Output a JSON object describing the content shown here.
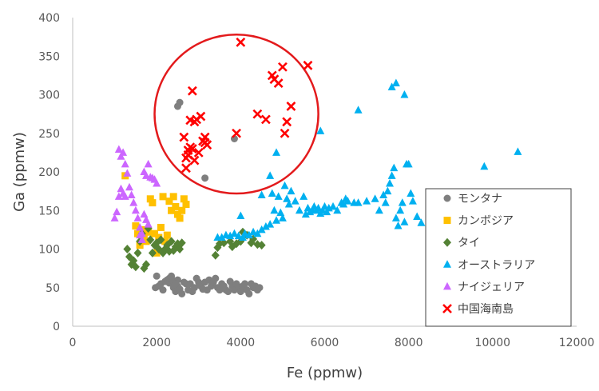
{
  "chart_data": {
    "type": "scatter",
    "title": "",
    "xlabel": "Fe (ppmw)",
    "ylabel": "Ga (ppmw)",
    "xlim": [
      0,
      12000
    ],
    "ylim": [
      0,
      400
    ],
    "xticks": [
      "0",
      "2000",
      "4000",
      "6000",
      "8000",
      "10000",
      "12000"
    ],
    "yticks": [
      "0",
      "50",
      "100",
      "150",
      "200",
      "250",
      "300",
      "350",
      "400"
    ],
    "grid": false,
    "legend_position": "bottom-right",
    "annotation": {
      "type": "ellipse",
      "color": "#e31a1c",
      "description": "red outline around the 中国海南島 cluster",
      "center": [
        3900,
        275
      ],
      "radius": [
        1950,
        103
      ]
    },
    "series": [
      {
        "name": "モンタナ",
        "marker": "circle",
        "color": "#7f7f7f",
        "points": [
          [
            1970,
            50
          ],
          [
            2000,
            65
          ],
          [
            2050,
            52
          ],
          [
            2100,
            55
          ],
          [
            2150,
            47
          ],
          [
            2200,
            58
          ],
          [
            2250,
            60
          ],
          [
            2300,
            56
          ],
          [
            2350,
            62
          ],
          [
            2400,
            50
          ],
          [
            2450,
            45
          ],
          [
            2500,
            52
          ],
          [
            2550,
            48
          ],
          [
            2600,
            42
          ],
          [
            2650,
            57
          ],
          [
            2700,
            55
          ],
          [
            2750,
            47
          ],
          [
            2800,
            55
          ],
          [
            2850,
            45
          ],
          [
            2900,
            50
          ],
          [
            2950,
            62
          ],
          [
            3000,
            57
          ],
          [
            3050,
            52
          ],
          [
            3100,
            48
          ],
          [
            3150,
            57
          ],
          [
            3200,
            47
          ],
          [
            3250,
            60
          ],
          [
            3300,
            52
          ],
          [
            3350,
            57
          ],
          [
            3400,
            62
          ],
          [
            3450,
            50
          ],
          [
            3500,
            47
          ],
          [
            3550,
            55
          ],
          [
            3600,
            52
          ],
          [
            3650,
            47
          ],
          [
            3700,
            45
          ],
          [
            3750,
            58
          ],
          [
            3800,
            52
          ],
          [
            3850,
            47
          ],
          [
            3900,
            55
          ],
          [
            3950,
            50
          ],
          [
            4000,
            45
          ],
          [
            4050,
            52
          ],
          [
            4100,
            55
          ],
          [
            4150,
            47
          ],
          [
            4200,
            42
          ],
          [
            4250,
            55
          ],
          [
            4300,
            50
          ],
          [
            4350,
            52
          ],
          [
            4400,
            47
          ],
          [
            4450,
            50
          ],
          [
            2300,
            62
          ],
          [
            2350,
            65
          ],
          [
            2400,
            58
          ],
          [
            2500,
            60
          ],
          [
            2450,
            55
          ],
          [
            2500,
            285
          ],
          [
            2550,
            290
          ],
          [
            3150,
            192
          ],
          [
            3850,
            243
          ]
        ]
      },
      {
        "name": "カンボジア",
        "marker": "square",
        "color": "#ffc000",
        "points": [
          [
            1250,
            195
          ],
          [
            1500,
            130
          ],
          [
            1550,
            120
          ],
          [
            1600,
            105
          ],
          [
            1650,
            125
          ],
          [
            1700,
            115
          ],
          [
            1750,
            110
          ],
          [
            1800,
            122
          ],
          [
            1850,
            165
          ],
          [
            1900,
            160
          ],
          [
            1950,
            120
          ],
          [
            2000,
            95
          ],
          [
            2050,
            115
          ],
          [
            2100,
            128
          ],
          [
            2150,
            168
          ],
          [
            2200,
            110
          ],
          [
            2250,
            118
          ],
          [
            2300,
            162
          ],
          [
            2350,
            150
          ],
          [
            2400,
            168
          ],
          [
            2450,
            155
          ],
          [
            2500,
            145
          ],
          [
            2550,
            140
          ],
          [
            2600,
            150
          ],
          [
            2650,
            165
          ],
          [
            2700,
            158
          ]
        ]
      },
      {
        "name": "タイ",
        "marker": "diamond",
        "color": "#548235",
        "points": [
          [
            1300,
            100
          ],
          [
            1350,
            90
          ],
          [
            1400,
            80
          ],
          [
            1450,
            85
          ],
          [
            1500,
            77
          ],
          [
            1550,
            95
          ],
          [
            1600,
            110
          ],
          [
            1650,
            120
          ],
          [
            1700,
            75
          ],
          [
            1750,
            80
          ],
          [
            1800,
            127
          ],
          [
            1850,
            112
          ],
          [
            1900,
            95
          ],
          [
            1950,
            105
          ],
          [
            2000,
            108
          ],
          [
            2050,
            100
          ],
          [
            2100,
            112
          ],
          [
            2150,
            95
          ],
          [
            2200,
            100
          ],
          [
            2250,
            105
          ],
          [
            2300,
            97
          ],
          [
            2350,
            110
          ],
          [
            2400,
            98
          ],
          [
            2450,
            103
          ],
          [
            2500,
            107
          ],
          [
            2550,
            100
          ],
          [
            2600,
            108
          ],
          [
            3400,
            92
          ],
          [
            3450,
            102
          ],
          [
            3500,
            107
          ],
          [
            3600,
            108
          ],
          [
            3750,
            110
          ],
          [
            3800,
            103
          ],
          [
            3900,
            107
          ],
          [
            4000,
            110
          ],
          [
            4050,
            122
          ],
          [
            4150,
            118
          ],
          [
            4250,
            108
          ],
          [
            4300,
            113
          ],
          [
            4400,
            106
          ],
          [
            4500,
            105
          ]
        ]
      },
      {
        "name": "オーストラリア",
        "marker": "triangle",
        "color": "#00b0f0",
        "points": [
          [
            3450,
            115
          ],
          [
            3550,
            115
          ],
          [
            3650,
            118
          ],
          [
            3750,
            117
          ],
          [
            3850,
            120
          ],
          [
            3950,
            117
          ],
          [
            4000,
            143
          ],
          [
            4050,
            115
          ],
          [
            4100,
            120
          ],
          [
            4200,
            118
          ],
          [
            4300,
            122
          ],
          [
            4400,
            120
          ],
          [
            4500,
            125
          ],
          [
            4600,
            129
          ],
          [
            4700,
            132
          ],
          [
            4750,
            172
          ],
          [
            4800,
            150
          ],
          [
            4850,
            137
          ],
          [
            4900,
            168
          ],
          [
            4950,
            147
          ],
          [
            5000,
            140
          ],
          [
            5050,
            182
          ],
          [
            5100,
            165
          ],
          [
            5150,
            158
          ],
          [
            5200,
            175
          ],
          [
            5300,
            162
          ],
          [
            5400,
            150
          ],
          [
            5500,
            168
          ],
          [
            5550,
            145
          ],
          [
            5600,
            153
          ],
          [
            5650,
            148
          ],
          [
            5700,
            150
          ],
          [
            5750,
            155
          ],
          [
            5800,
            150
          ],
          [
            5850,
            153
          ],
          [
            5900,
            146
          ],
          [
            5950,
            150
          ],
          [
            6000,
            155
          ],
          [
            6050,
            148
          ],
          [
            6100,
            153
          ],
          [
            6200,
            155
          ],
          [
            6300,
            150
          ],
          [
            6400,
            160
          ],
          [
            6450,
            158
          ],
          [
            6500,
            165
          ],
          [
            6550,
            162
          ],
          [
            6700,
            160
          ],
          [
            6800,
            160
          ],
          [
            7000,
            162
          ],
          [
            7200,
            165
          ],
          [
            7300,
            150
          ],
          [
            7400,
            170
          ],
          [
            7450,
            160
          ],
          [
            7500,
            175
          ],
          [
            7550,
            185
          ],
          [
            7600,
            195
          ],
          [
            7650,
            205
          ],
          [
            7700,
            140
          ],
          [
            7750,
            130
          ],
          [
            7800,
            150
          ],
          [
            7850,
            160
          ],
          [
            7900,
            135
          ],
          [
            7950,
            210
          ],
          [
            8050,
            172
          ],
          [
            8100,
            162
          ],
          [
            8200,
            142
          ],
          [
            8300,
            134
          ],
          [
            6800,
            280
          ],
          [
            7600,
            310
          ],
          [
            7700,
            315
          ],
          [
            7900,
            300
          ],
          [
            8000,
            210
          ],
          [
            9800,
            207
          ],
          [
            10600,
            226
          ],
          [
            4700,
            195
          ],
          [
            4850,
            225
          ],
          [
            5900,
            253
          ],
          [
            4500,
            170
          ]
        ]
      },
      {
        "name": "ナイジェリア",
        "marker": "triangle",
        "color": "#cc66ff",
        "points": [
          [
            1000,
            140
          ],
          [
            1050,
            148
          ],
          [
            1100,
            168
          ],
          [
            1150,
            178
          ],
          [
            1200,
            225
          ],
          [
            1250,
            210
          ],
          [
            1300,
            198
          ],
          [
            1350,
            180
          ],
          [
            1400,
            170
          ],
          [
            1450,
            160
          ],
          [
            1500,
            150
          ],
          [
            1550,
            140
          ],
          [
            1600,
            128
          ],
          [
            1650,
            120
          ],
          [
            1700,
            200
          ],
          [
            1750,
            195
          ],
          [
            1800,
            210
          ],
          [
            1850,
            193
          ],
          [
            1900,
            192
          ],
          [
            1950,
            190
          ],
          [
            2000,
            185
          ],
          [
            1100,
            229
          ],
          [
            1150,
            220
          ],
          [
            1200,
            172
          ],
          [
            1250,
            168
          ],
          [
            1700,
            145
          ],
          [
            1750,
            138
          ],
          [
            1800,
            132
          ],
          [
            1600,
            118
          ],
          [
            1650,
            112
          ]
        ]
      },
      {
        "name": "中国海南島",
        "marker": "cross",
        "color": "#ff0000",
        "points": [
          [
            2650,
            245
          ],
          [
            2700,
            205
          ],
          [
            2750,
            228
          ],
          [
            2800,
            232
          ],
          [
            2850,
            230
          ],
          [
            2900,
            265
          ],
          [
            2950,
            268
          ],
          [
            3000,
            225
          ],
          [
            3050,
            272
          ],
          [
            3100,
            240
          ],
          [
            3150,
            238
          ],
          [
            3200,
            235
          ],
          [
            2850,
            305
          ],
          [
            2800,
            267
          ],
          [
            3150,
            245
          ],
          [
            3900,
            250
          ],
          [
            4000,
            368
          ],
          [
            4400,
            275
          ],
          [
            4600,
            268
          ],
          [
            4750,
            325
          ],
          [
            4800,
            320
          ],
          [
            4900,
            315
          ],
          [
            5000,
            336
          ],
          [
            5050,
            250
          ],
          [
            5100,
            265
          ],
          [
            5200,
            285
          ],
          [
            5600,
            338
          ],
          [
            2700,
            218
          ],
          [
            2750,
            222
          ],
          [
            2900,
            215
          ]
        ]
      }
    ]
  }
}
